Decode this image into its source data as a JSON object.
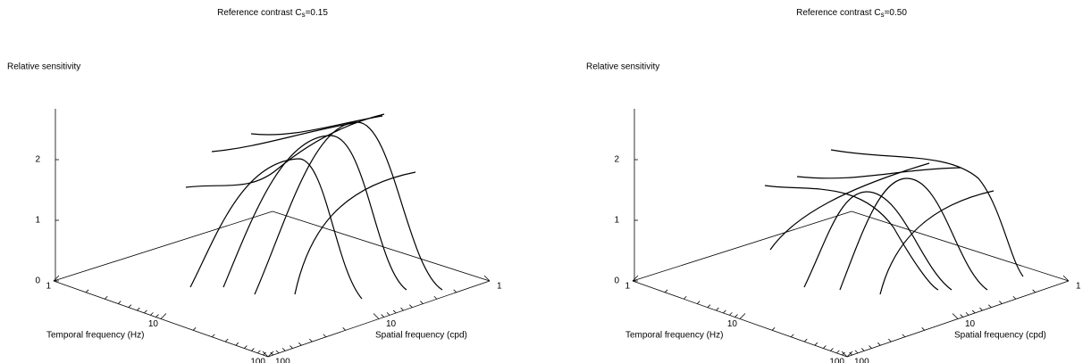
{
  "chart_data": [
    {
      "type": "surface3d",
      "title": [
        "Reference contrast C",
        "s",
        "=0.15"
      ],
      "zlabel": "Relative sensitivity",
      "xlabel": "Temporal frequency (Hz)",
      "ylabel": "Spatial frequency (cpd)",
      "zticks": [
        0,
        1,
        2
      ],
      "xticks": [
        1,
        10,
        100
      ],
      "yticks": [
        1,
        10,
        100
      ],
      "xscale": "log",
      "yscale": "log",
      "color": "#000000"
    },
    {
      "type": "surface3d",
      "title": [
        "Reference contrast C",
        "s",
        "=0.50"
      ],
      "zlabel": "Relative sensitivity",
      "xlabel": "Temporal frequency (Hz)",
      "ylabel": "Spatial frequency (cpd)",
      "zticks": [
        0,
        1,
        2
      ],
      "xticks": [
        1,
        10,
        100
      ],
      "yticks": [
        1,
        10,
        100
      ],
      "xscale": "log",
      "yscale": "log",
      "color": "#000000"
    }
  ]
}
